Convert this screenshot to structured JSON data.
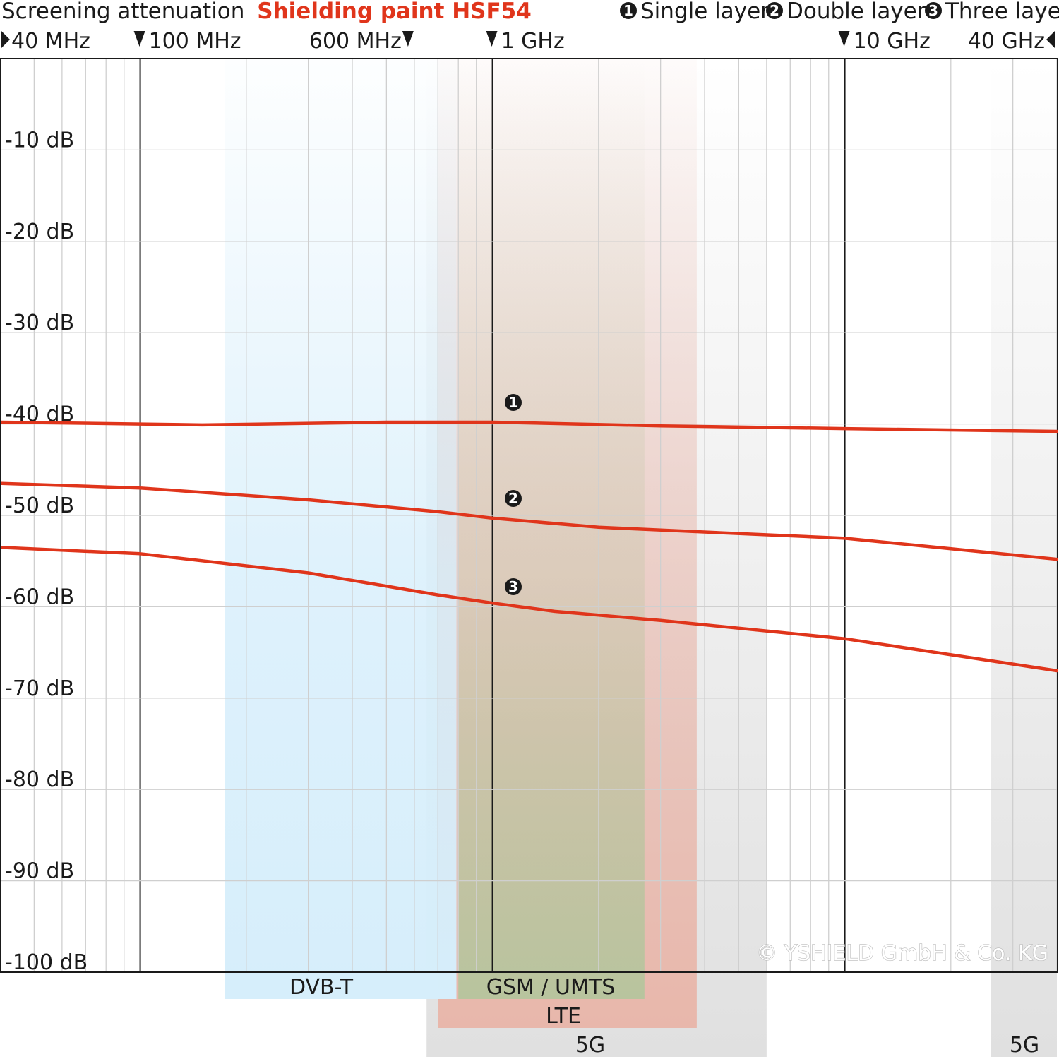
{
  "title_prefix": "Screening attenuation",
  "title_product": "Shielding paint HSF54",
  "legend": [
    {
      "num": "1",
      "label": "Single layer"
    },
    {
      "num": "2",
      "label": "Double layer"
    },
    {
      "num": "3",
      "label": "Three layer"
    }
  ],
  "frequency_markers": [
    {
      "label": "40 MHz",
      "freq_mhz": 40,
      "arrow": "right"
    },
    {
      "label": "100 MHz",
      "freq_mhz": 100,
      "arrow": "down"
    },
    {
      "label": "600 MHz",
      "freq_mhz": 600,
      "arrow": "down"
    },
    {
      "label": "1 GHz",
      "freq_mhz": 1000,
      "arrow": "down"
    },
    {
      "label": "10 GHz",
      "freq_mhz": 10000,
      "arrow": "down"
    },
    {
      "label": "40 GHz",
      "freq_mhz": 40000,
      "arrow": "left"
    }
  ],
  "copyright": "© YSHIELD GmbH & Co. KG",
  "colors": {
    "curve": "#e0351b",
    "dvb_band": "#d6eefb",
    "lte_band": "#e8b7ab",
    "gsm_band": "#b8c49e",
    "fiveg_band": "#e0e0e0",
    "grid": "#cfcfcf",
    "major_grid": "#1a1a1a"
  },
  "chart_data": {
    "type": "line",
    "x_scale": "log",
    "x_unit": "MHz",
    "xlim": [
      40,
      40000
    ],
    "ylim": [
      -100,
      0
    ],
    "y_unit": "dB",
    "y_ticks": [
      {
        "value": -10,
        "label": "-10 dB"
      },
      {
        "value": -20,
        "label": "-20 dB"
      },
      {
        "value": -30,
        "label": "-30 dB"
      },
      {
        "value": -40,
        "label": "-40 dB"
      },
      {
        "value": -50,
        "label": "-50 dB"
      },
      {
        "value": -60,
        "label": "-60 dB"
      },
      {
        "value": -70,
        "label": "-70 dB"
      },
      {
        "value": -80,
        "label": "-80 dB"
      },
      {
        "value": -90,
        "label": "-90 dB"
      },
      {
        "value": -100,
        "label": "-100 dB"
      }
    ],
    "grid": true,
    "bands": [
      {
        "label": "DVB-T",
        "from_mhz": 174,
        "to_mhz": 790
      },
      {
        "label": "GSM / UMTS",
        "from_mhz": 800,
        "to_mhz": 2700
      },
      {
        "label": "LTE",
        "from_mhz": 700,
        "to_mhz": 3800
      },
      {
        "label": "5G",
        "from_mhz": 650,
        "to_mhz": 6000
      },
      {
        "label": "5G",
        "from_mhz": 26000,
        "to_mhz": 40000
      }
    ],
    "series": [
      {
        "marker": "1",
        "x": [
          40,
          100,
          150,
          500,
          1000,
          3000,
          10000,
          40000
        ],
        "y": [
          -39.8,
          -40.0,
          -40.1,
          -39.8,
          -39.8,
          -40.2,
          -40.5,
          -40.8
        ]
      },
      {
        "marker": "2",
        "x": [
          40,
          100,
          300,
          700,
          1000,
          2000,
          10000,
          40000
        ],
        "y": [
          -46.5,
          -47.0,
          -48.3,
          -49.6,
          -50.3,
          -51.3,
          -52.5,
          -54.8
        ]
      },
      {
        "marker": "3",
        "x": [
          40,
          100,
          300,
          700,
          1000,
          1500,
          3000,
          10000,
          40000
        ],
        "y": [
          -53.5,
          -54.2,
          -56.3,
          -58.7,
          -59.6,
          -60.5,
          -61.5,
          -63.5,
          -67.0
        ]
      }
    ]
  }
}
